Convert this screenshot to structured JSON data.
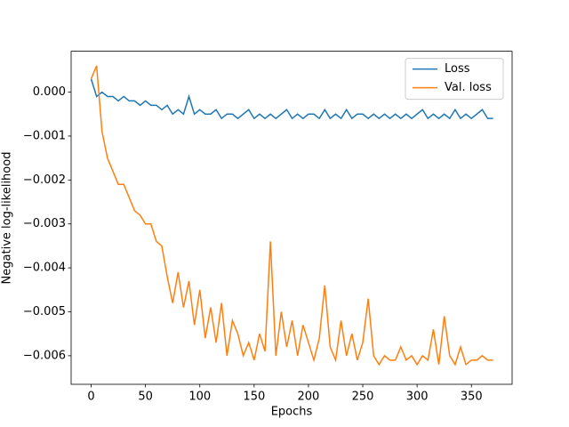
{
  "chart_data": {
    "type": "line",
    "xlabel": "Epochs",
    "ylabel": "Negative log-likelihood",
    "x": [
      0,
      5,
      10,
      15,
      20,
      25,
      30,
      35,
      40,
      45,
      50,
      55,
      60,
      65,
      70,
      75,
      80,
      85,
      90,
      95,
      100,
      105,
      110,
      115,
      120,
      125,
      130,
      135,
      140,
      145,
      150,
      155,
      160,
      165,
      170,
      175,
      180,
      185,
      190,
      195,
      200,
      205,
      210,
      215,
      220,
      225,
      230,
      235,
      240,
      245,
      250,
      255,
      260,
      265,
      270,
      275,
      280,
      285,
      290,
      295,
      300,
      305,
      310,
      315,
      320,
      325,
      330,
      335,
      340,
      345,
      350,
      355,
      360,
      365,
      370
    ],
    "series": [
      {
        "name": "Loss",
        "color": "#1f77b4",
        "values": [
          0.0003,
          -0.0001,
          0,
          -0.0001,
          -0.0001,
          -0.0002,
          -0.0001,
          -0.0002,
          -0.0002,
          -0.0003,
          -0.0002,
          -0.0003,
          -0.0003,
          -0.0004,
          -0.0003,
          -0.0005,
          -0.0004,
          -0.0005,
          -0.0001,
          -0.0005,
          -0.0004,
          -0.0005,
          -0.0005,
          -0.0004,
          -0.0006,
          -0.0005,
          -0.0005,
          -0.0006,
          -0.0005,
          -0.0004,
          -0.0006,
          -0.0005,
          -0.0006,
          -0.0005,
          -0.0006,
          -0.0005,
          -0.0004,
          -0.0006,
          -0.0005,
          -0.0006,
          -0.0005,
          -0.0005,
          -0.0006,
          -0.0004,
          -0.0006,
          -0.0005,
          -0.0006,
          -0.0004,
          -0.0006,
          -0.0005,
          -0.0005,
          -0.0006,
          -0.0005,
          -0.0006,
          -0.0005,
          -0.0006,
          -0.0005,
          -0.0006,
          -0.0005,
          -0.0006,
          -0.0005,
          -0.0004,
          -0.0006,
          -0.0005,
          -0.0006,
          -0.0005,
          -0.0006,
          -0.0004,
          -0.0006,
          -0.0005,
          -0.0006,
          -0.0005,
          -0.0004,
          -0.0006,
          -0.0006
        ]
      },
      {
        "name": "Val. loss",
        "color": "#ff7f0e",
        "values": [
          0.0003,
          0.0006,
          -0.0009,
          -0.0015,
          -0.0018,
          -0.0021,
          -0.0021,
          -0.0024,
          -0.0027,
          -0.0028,
          -0.003,
          -0.003,
          -0.0034,
          -0.0035,
          -0.0042,
          -0.0048,
          -0.0041,
          -0.0049,
          -0.0043,
          -0.0053,
          -0.0045,
          -0.0056,
          -0.0049,
          -0.0057,
          -0.0048,
          -0.006,
          -0.0052,
          -0.0055,
          -0.006,
          -0.0057,
          -0.0061,
          -0.0055,
          -0.0059,
          -0.0034,
          -0.006,
          -0.005,
          -0.0058,
          -0.0052,
          -0.006,
          -0.0053,
          -0.0057,
          -0.0061,
          -0.0056,
          -0.0044,
          -0.0058,
          -0.0061,
          -0.0052,
          -0.006,
          -0.0055,
          -0.0061,
          -0.0057,
          -0.0047,
          -0.006,
          -0.0062,
          -0.006,
          -0.0061,
          -0.0061,
          -0.0058,
          -0.0061,
          -0.006,
          -0.0062,
          -0.006,
          -0.0061,
          -0.0054,
          -0.0062,
          -0.0051,
          -0.006,
          -0.0062,
          -0.0058,
          -0.0062,
          -0.0061,
          -0.0061,
          -0.006,
          -0.0061,
          -0.0061
        ]
      }
    ],
    "xlim": [
      -18.45,
      387.45
    ],
    "xticks": [
      0,
      50,
      100,
      150,
      200,
      250,
      300,
      350
    ],
    "ylim": [
      -0.00665,
      0.00093
    ],
    "yticks": [
      {
        "value": 0,
        "label": "0.000"
      },
      {
        "value": -0.001,
        "label": "−0.001"
      },
      {
        "value": -0.002,
        "label": "−0.002"
      },
      {
        "value": -0.003,
        "label": "−0.003"
      },
      {
        "value": -0.004,
        "label": "−0.004"
      },
      {
        "value": -0.005,
        "label": "−0.005"
      },
      {
        "value": -0.006,
        "label": "−0.006"
      }
    ],
    "legend": "upper right",
    "grid": false
  }
}
